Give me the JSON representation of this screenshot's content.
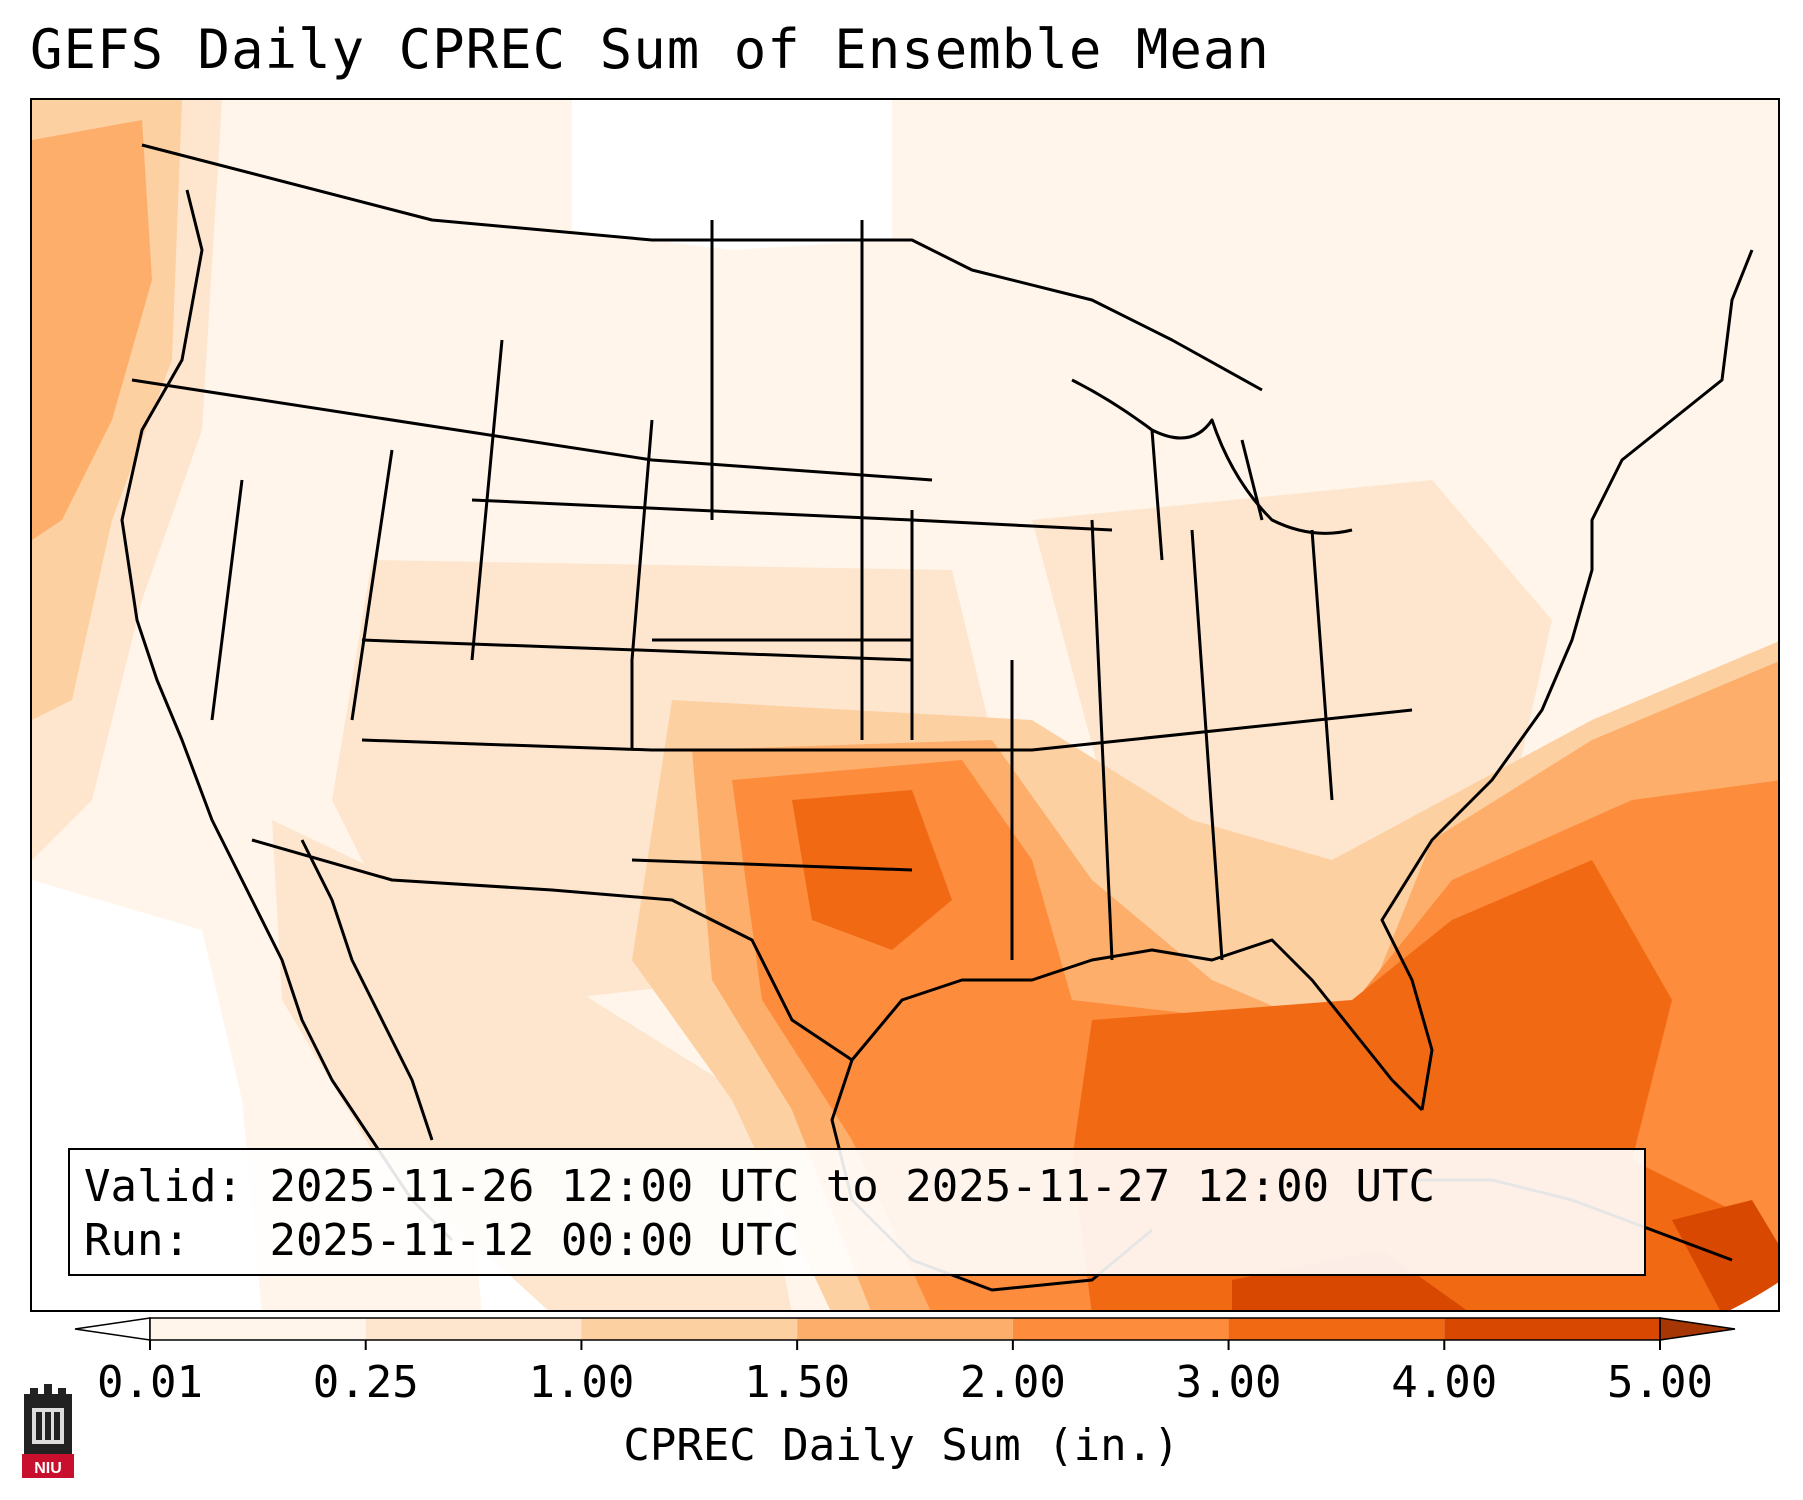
{
  "title": "GEFS Daily CPREC Sum of Ensemble Mean",
  "info": {
    "valid_label": "Valid:",
    "valid_value": "2025-11-26 12:00 UTC to 2025-11-27 12:00 UTC",
    "run_label": "Run:",
    "run_value": "2025-11-12 00:00 UTC"
  },
  "colorbar": {
    "label": "CPREC Daily Sum (in.)",
    "ticks": [
      "0.01",
      "0.25",
      "1.00",
      "1.50",
      "2.00",
      "3.00",
      "4.00",
      "5.00"
    ],
    "colors": [
      "#fff5eb",
      "#fee6ce",
      "#fdd0a2",
      "#fdae6b",
      "#fd8d3c",
      "#f16913",
      "#d94801",
      "#a63603"
    ],
    "extend": "both"
  },
  "map": {
    "projection": "lambert-conformal",
    "region": "CONUS",
    "precip_colors": {
      "very_light": "#fff5eb",
      "light": "#fee6ce",
      "medium_light": "#fdd0a2",
      "medium": "#fdae6b",
      "heavy": "#fd8d3c",
      "very_heavy": "#f16913",
      "extreme": "#d94801"
    }
  },
  "logo": {
    "text": "NIU",
    "color": "#c8102e"
  }
}
